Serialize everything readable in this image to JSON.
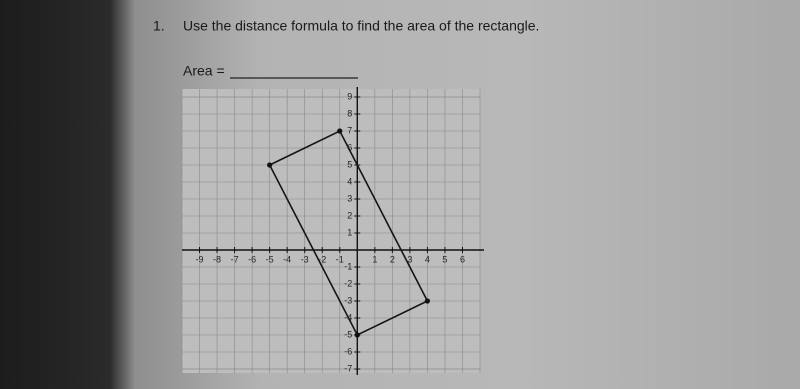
{
  "question": {
    "number": "1.",
    "text": "Use the distance formula to find the area of the rectangle.",
    "answer_label": "Area ="
  },
  "graph": {
    "xlim": [
      -10,
      7
    ],
    "ylim": [
      -7,
      9
    ],
    "xticks": [
      -9,
      -8,
      -7,
      -6,
      -5,
      -4,
      -3,
      -2,
      -1,
      1,
      2,
      3,
      4,
      5,
      6
    ],
    "yticks": [
      -7,
      -6,
      -5,
      -4,
      -3,
      -2,
      -1,
      1,
      2,
      3,
      4,
      5,
      6,
      7,
      8,
      9
    ],
    "vertices": [
      {
        "x": -5,
        "y": 5
      },
      {
        "x": -1,
        "y": 7
      },
      {
        "x": 4,
        "y": -3
      },
      {
        "x": 0,
        "y": -5
      }
    ]
  }
}
